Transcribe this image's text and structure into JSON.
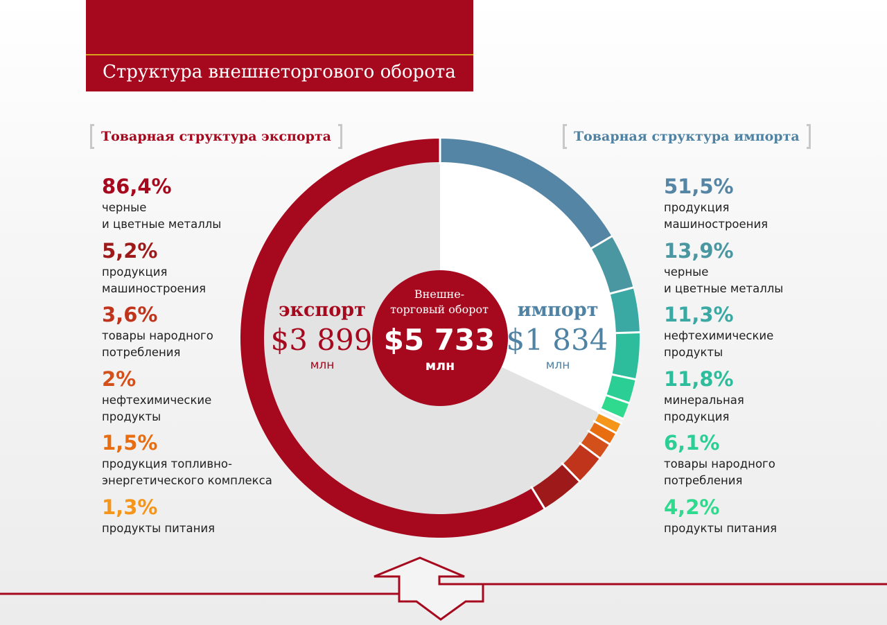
{
  "header": {
    "title": "Структура внешнеторгового оборота"
  },
  "export": {
    "heading": "Товарная структура экспорта",
    "word": "экспорт",
    "value": "$3 899",
    "unit": "млн",
    "items": [
      {
        "pct": "86,4%",
        "label": "черные\nи цветные металлы",
        "value": 86.4,
        "color": "#a6081e"
      },
      {
        "pct": "5,2%",
        "label": "продукция\nмашиностроения",
        "value": 5.2,
        "color": "#9e1a1a"
      },
      {
        "pct": "3,6%",
        "label": "товары народного\nпотребления",
        "value": 3.6,
        "color": "#c0341b"
      },
      {
        "pct": "2%",
        "label": "нефтехимические\nпродукты",
        "value": 2.0,
        "color": "#d4501a"
      },
      {
        "pct": "1,5%",
        "label": "продукция топливно-\nэнергетического комплекса",
        "value": 1.5,
        "color": "#e86d10"
      },
      {
        "pct": "1,3%",
        "label": "продукты питания",
        "value": 1.3,
        "color": "#f5951a"
      }
    ]
  },
  "import": {
    "heading": "Товарная структура импорта",
    "word": "импорт",
    "value": "$1 834",
    "unit": "млн",
    "items": [
      {
        "pct": "51,5%",
        "label": "продукция\nмашиностроения",
        "value": 51.5,
        "color": "#5585a5"
      },
      {
        "pct": "13,9%",
        "label": "черные\nи цветные металлы",
        "value": 13.9,
        "color": "#4a97a2"
      },
      {
        "pct": "11,3%",
        "label": "нефтехимические\nпродукты",
        "value": 11.3,
        "color": "#3aa9a4"
      },
      {
        "pct": "11,8%",
        "label": "минеральная\nпродукция",
        "value": 11.8,
        "color": "#2dbd9c"
      },
      {
        "pct": "6,1%",
        "label": "товары народного\nпотребления",
        "value": 6.1,
        "color": "#2bcf96"
      },
      {
        "pct": "4,2%",
        "label": "продукты питания",
        "value": 4.2,
        "color": "#2fd98e"
      }
    ]
  },
  "total": {
    "caption": "Внешне-\nторговый оборот",
    "value": "$5 733",
    "unit": "млн"
  },
  "colors": {
    "brand_red": "#a6081e",
    "gold": "#d9a21c",
    "import_blue": "#4f82a3",
    "export_sector_fill": "#e3e3e3",
    "import_sector_fill": "#ffffff"
  },
  "chart_data": {
    "type": "pie",
    "title": "Структура внешнеторгового оборота",
    "total": 5733,
    "unit": "млн",
    "series": [
      {
        "name": "экспорт",
        "total": 3899,
        "categories": [
          "черные и цветные металлы",
          "продукция машиностроения",
          "товары народного потребления",
          "нефтехимические продукты",
          "продукция топливно-энергетического комплекса",
          "продукты питания"
        ],
        "values": [
          86.4,
          5.2,
          3.6,
          2.0,
          1.5,
          1.3
        ]
      },
      {
        "name": "импорт",
        "total": 1834,
        "categories": [
          "продукция машиностроения",
          "черные и цветные металлы",
          "нефтехимические продукты",
          "минеральная продукция",
          "товары народного потребления",
          "продукты питания"
        ],
        "values": [
          51.5,
          13.9,
          11.3,
          11.8,
          6.1,
          4.2
        ]
      }
    ]
  }
}
